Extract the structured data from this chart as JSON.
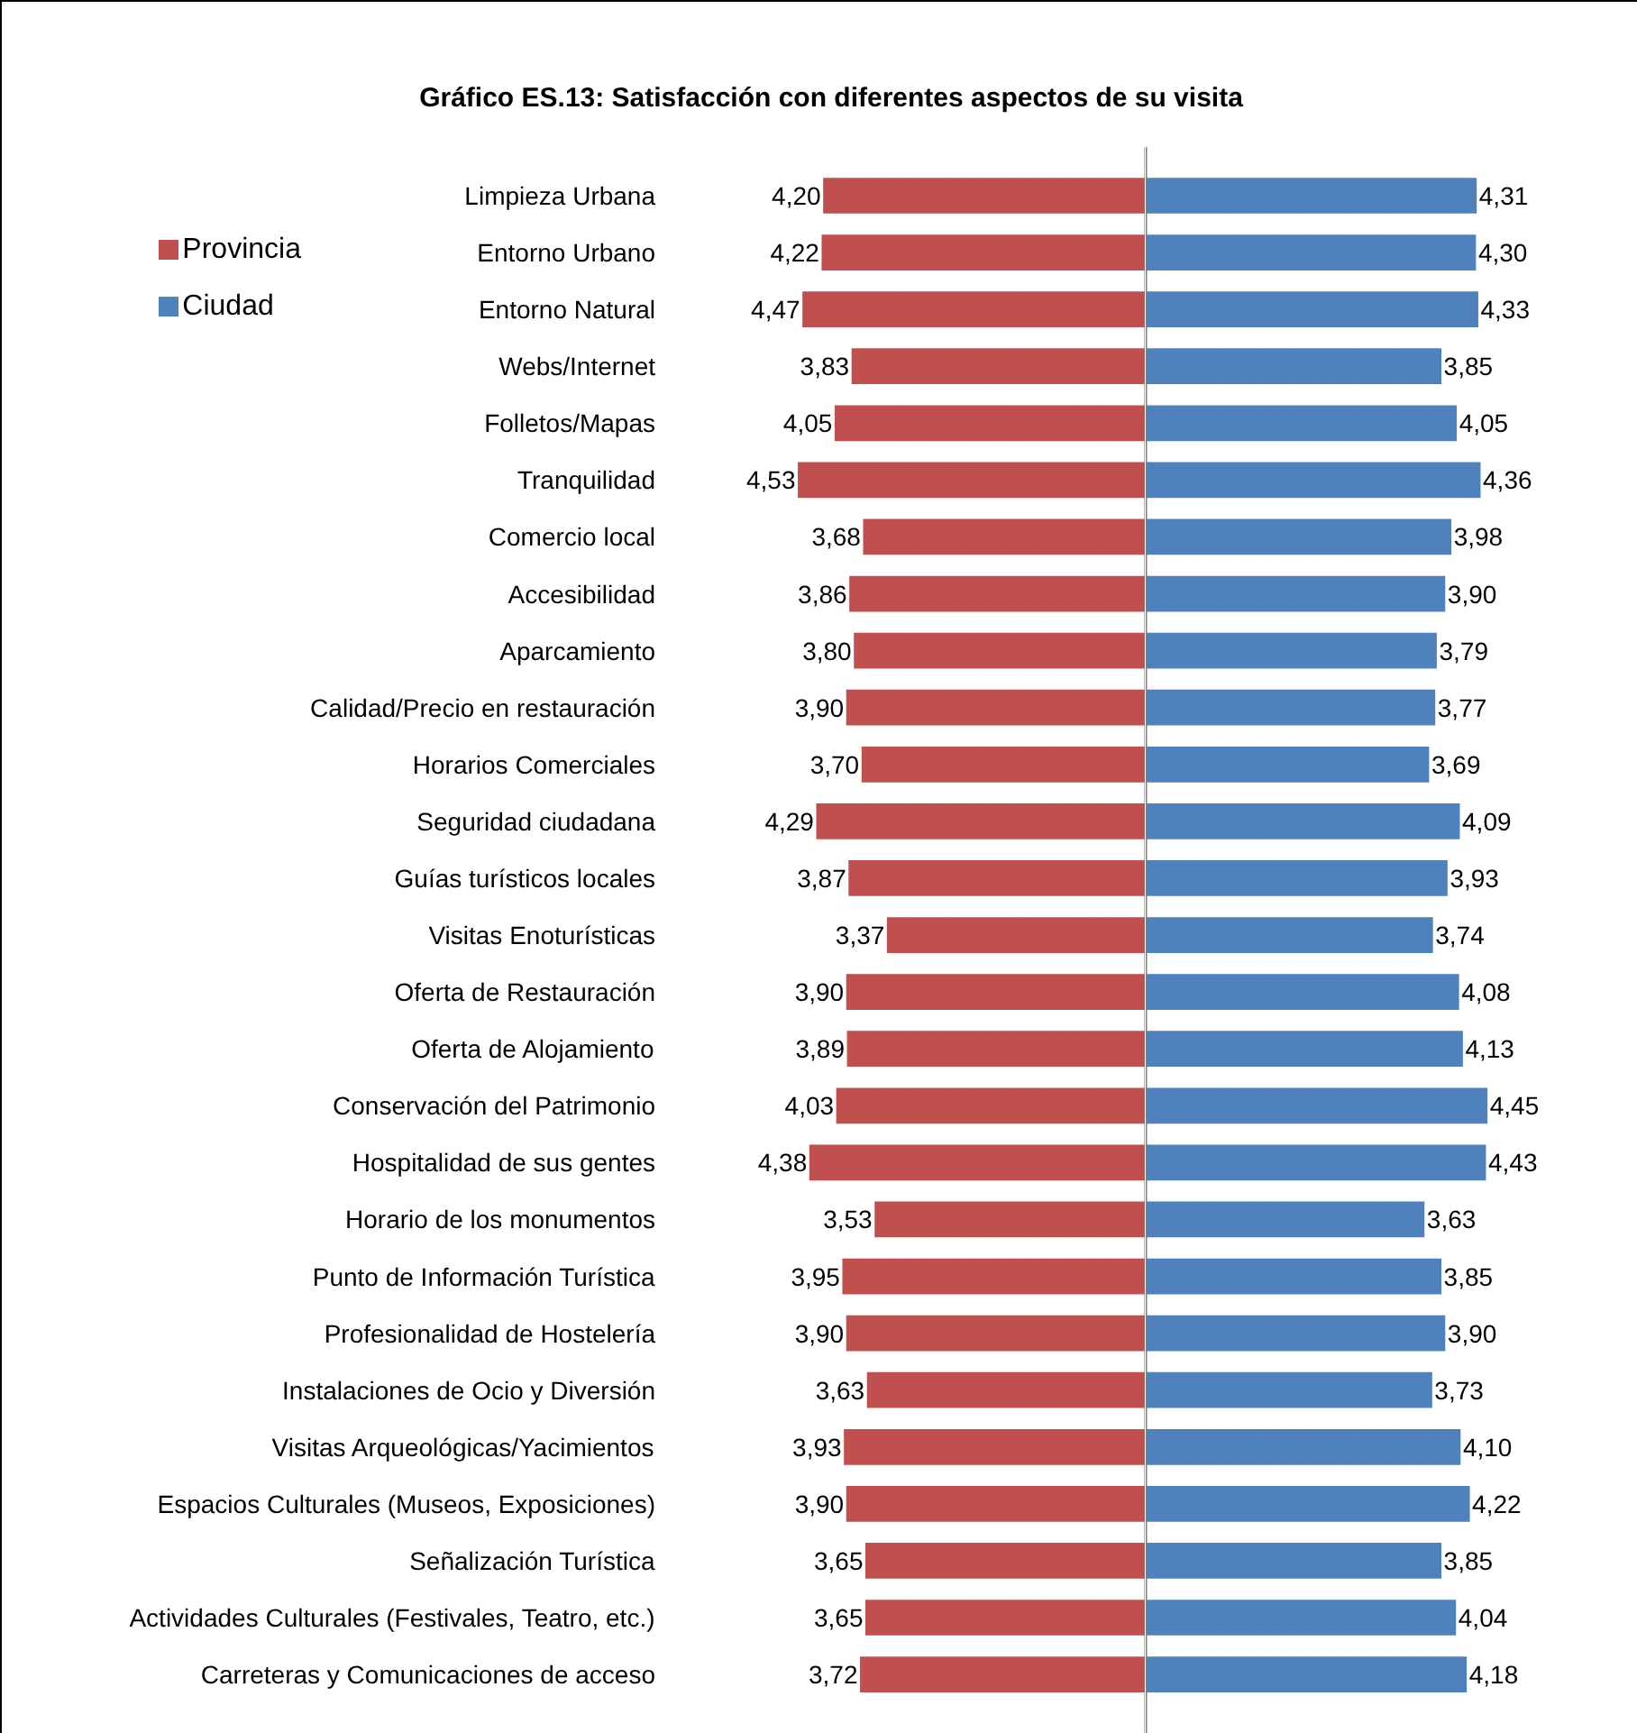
{
  "chart_data": [
    {
      "type": "bar",
      "orientation": "horizontal",
      "title": "Gráfico ES.13: Satisfacción con diferentes aspectos de su visita",
      "categories": [
        "Limpieza Urbana",
        "Entorno Urbano",
        "Entorno Natural",
        "Webs/Internet",
        "Folletos/Mapas",
        "Tranquilidad",
        "Comercio local",
        "Accesibilidad",
        "Aparcamiento",
        "Calidad/Precio en restauración",
        "Horarios Comerciales",
        "Seguridad ciudadana",
        "Guías turísticos locales",
        "Visitas Enoturísticas",
        "Oferta de Restauración",
        "Oferta de Alojamiento",
        "Conservación del Patrimonio",
        "Hospitalidad de sus gentes",
        "Horario de los monumentos",
        "Punto de Información Turística",
        "Profesionalidad de Hostelería",
        "Instalaciones de Ocio y Diversión",
        "Visitas Arqueológicas/Yacimientos",
        "Espacios Culturales (Museos, Exposiciones)",
        "Señalización Turística",
        "Actividades Culturales (Festivales, Teatro, etc.)",
        "Carreteras y Comunicaciones de acceso"
      ],
      "series": [
        {
          "name": "Provincia",
          "color": "#c0504d",
          "values": [
            4.2,
            4.22,
            4.47,
            3.83,
            4.05,
            4.53,
            3.68,
            3.86,
            3.8,
            3.9,
            3.7,
            4.29,
            3.87,
            3.37,
            3.9,
            3.89,
            4.03,
            4.38,
            3.53,
            3.95,
            3.9,
            3.63,
            3.93,
            3.9,
            3.65,
            3.65,
            3.72
          ],
          "value_labels": [
            "4,20",
            "4,22",
            "4,47",
            "3,83",
            "4,05",
            "4,53",
            "3,68",
            "3,86",
            "3,80",
            "3,90",
            "3,70",
            "4,29",
            "3,87",
            "3,37",
            "3,90",
            "3,89",
            "4,03",
            "4,38",
            "3,53",
            "3,95",
            "3,90",
            "3,63",
            "3,93",
            "3,90",
            "3,65",
            "3,65",
            "3,72"
          ]
        }
      ],
      "legend": "top left"
    },
    {
      "type": "bar",
      "orientation": "horizontal",
      "categories": [
        null,
        null,
        null,
        null,
        null,
        null,
        null,
        null,
        null,
        null,
        null,
        null,
        null,
        null,
        null,
        null,
        null,
        null,
        null,
        null,
        null,
        null,
        null,
        null,
        null,
        null,
        null
      ],
      "series": [
        {
          "name": "Ciudad",
          "color": "#4f81bd",
          "values": [
            4.31,
            4.3,
            4.33,
            3.85,
            4.05,
            4.36,
            3.98,
            3.9,
            3.79,
            3.77,
            3.69,
            4.09,
            3.93,
            3.74,
            4.08,
            4.13,
            4.45,
            4.43,
            3.63,
            3.85,
            3.9,
            3.73,
            4.1,
            4.22,
            3.85,
            4.04,
            4.18
          ],
          "value_labels": [
            "4,31",
            "4,30",
            "4,33",
            "3,85",
            "4,05",
            "4,36",
            "3,98",
            "3,90",
            "3,79",
            "3,77",
            "3,69",
            "4,09",
            "3,93",
            "3,74",
            "4,08",
            "4,13",
            "4,45",
            "4,43",
            "3,63",
            "3,85",
            "3,90",
            "3,73",
            "4,10",
            "4,22",
            "3,85",
            "4,04",
            "4,18"
          ]
        }
      ],
      "legend": "top left"
    }
  ]
}
